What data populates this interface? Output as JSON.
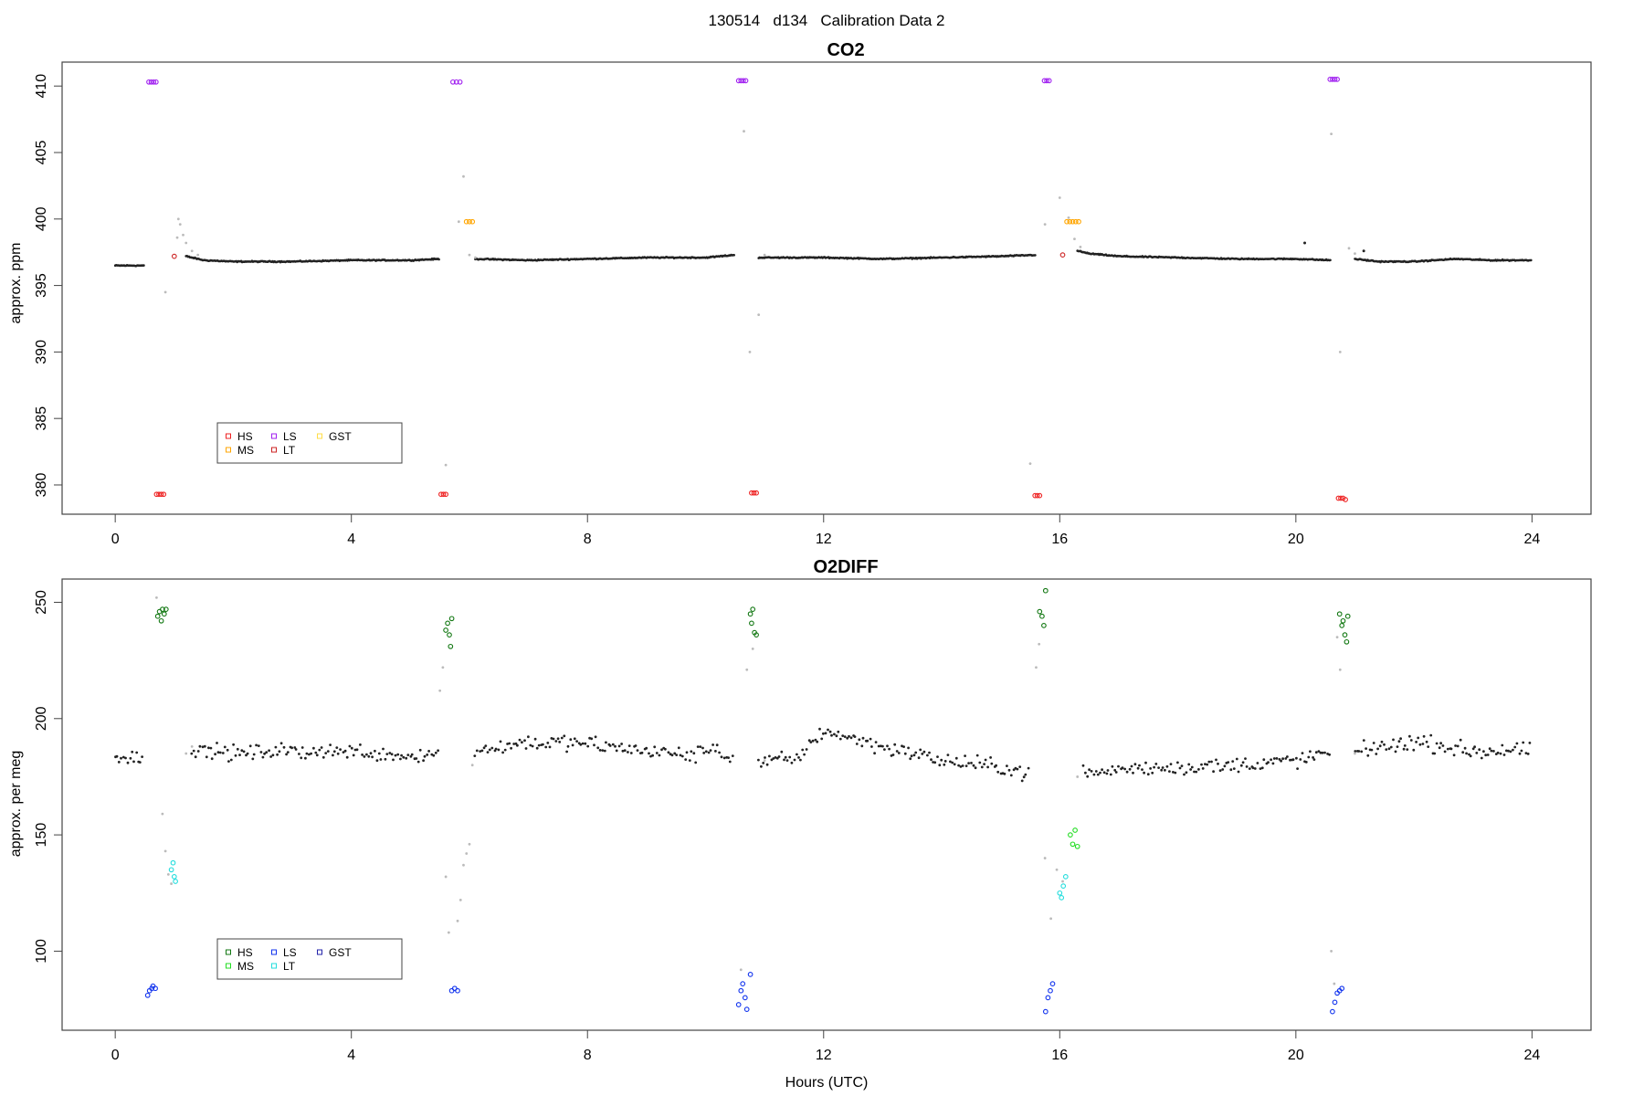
{
  "figure": {
    "main_title": "130514   d134   Calibration Data 2",
    "xlabel": "Hours (UTC)"
  },
  "colors": {
    "ambient": "#222222",
    "flush": "#bbbbbb",
    "HS_co2": "#ee2222",
    "MS_co2": "#ffa500",
    "LS_co2": "#a020f0",
    "LT_co2": "#cc2222",
    "GST_co2": "#ffdd44",
    "HS_o2": "#117711",
    "MS_o2": "#22dd22",
    "LS_o2": "#1133ee",
    "LT_o2": "#22dddd",
    "GST_o2": "#2222aa"
  },
  "chart_data": [
    {
      "type": "scatter",
      "title": "CO2",
      "ylabel": "approx. ppm",
      "xlabel": "",
      "xlim": [
        -0.9,
        25.0
      ],
      "ylim": [
        377.8,
        411.8
      ],
      "xticks": [
        0,
        4,
        8,
        12,
        16,
        20,
        24
      ],
      "yticks": [
        380,
        385,
        390,
        395,
        400,
        405,
        410
      ],
      "legend": {
        "placement": "bottom-left",
        "entries": [
          "HS",
          "MS",
          "LS",
          "LT",
          "GST"
        ]
      },
      "ambient_trace": [
        [
          0.0,
          396.5
        ],
        [
          0.5,
          396.5
        ],
        [
          null,
          null
        ],
        [
          1.2,
          397.2
        ],
        [
          1.5,
          396.9
        ],
        [
          2.0,
          396.8
        ],
        [
          3.0,
          396.8
        ],
        [
          4.0,
          396.9
        ],
        [
          5.0,
          396.9
        ],
        [
          5.5,
          397.0
        ],
        [
          null,
          null
        ],
        [
          6.1,
          397.0
        ],
        [
          7.0,
          396.9
        ],
        [
          8.0,
          397.0
        ],
        [
          9.0,
          397.1
        ],
        [
          10.0,
          397.1
        ],
        [
          10.5,
          397.3
        ],
        [
          null,
          null
        ],
        [
          10.9,
          397.1
        ],
        [
          12.0,
          397.1
        ],
        [
          13.0,
          397.0
        ],
        [
          14.0,
          397.1
        ],
        [
          15.0,
          397.2
        ],
        [
          15.6,
          397.3
        ],
        [
          null,
          null
        ],
        [
          16.3,
          397.6
        ],
        [
          16.5,
          397.4
        ],
        [
          17.0,
          397.2
        ],
        [
          18.0,
          397.1
        ],
        [
          19.0,
          397.0
        ],
        [
          20.0,
          397.0
        ],
        [
          20.6,
          396.9
        ],
        [
          null,
          null
        ],
        [
          21.0,
          397.0
        ],
        [
          21.4,
          396.8
        ],
        [
          22.0,
          396.8
        ],
        [
          22.7,
          397.0
        ],
        [
          23.3,
          396.9
        ],
        [
          24.0,
          396.9
        ]
      ],
      "flush_points": [
        [
          1.05,
          398.6
        ],
        [
          1.07,
          400.0
        ],
        [
          1.1,
          399.6
        ],
        [
          1.15,
          398.8
        ],
        [
          1.2,
          398.2
        ],
        [
          1.3,
          397.6
        ],
        [
          1.4,
          397.3
        ],
        [
          0.85,
          394.5
        ],
        [
          5.6,
          381.5
        ],
        [
          5.82,
          399.8
        ],
        [
          5.9,
          403.2
        ],
        [
          6.0,
          397.3
        ],
        [
          6.1,
          397.1
        ],
        [
          10.65,
          406.6
        ],
        [
          10.75,
          390.0
        ],
        [
          10.9,
          392.8
        ],
        [
          11.0,
          397.3
        ],
        [
          15.5,
          381.6
        ],
        [
          15.75,
          399.6
        ],
        [
          16.0,
          401.6
        ],
        [
          16.15,
          400.1
        ],
        [
          16.25,
          398.5
        ],
        [
          16.35,
          397.9
        ],
        [
          20.6,
          406.4
        ],
        [
          20.75,
          390.0
        ],
        [
          20.9,
          397.8
        ],
        [
          21.0,
          397.4
        ]
      ],
      "series": [
        {
          "name": "HS",
          "points": [
            [
              0.7,
              379.3
            ],
            [
              0.74,
              379.3
            ],
            [
              0.78,
              379.3
            ],
            [
              0.82,
              379.3
            ],
            [
              5.52,
              379.3
            ],
            [
              5.56,
              379.3
            ],
            [
              5.6,
              379.3
            ],
            [
              10.78,
              379.4
            ],
            [
              10.82,
              379.4
            ],
            [
              10.86,
              379.4
            ],
            [
              15.58,
              379.2
            ],
            [
              15.62,
              379.2
            ],
            [
              15.66,
              379.2
            ],
            [
              20.72,
              379.0
            ],
            [
              20.76,
              379.0
            ],
            [
              20.8,
              379.0
            ],
            [
              20.84,
              378.9
            ]
          ]
        },
        {
          "name": "MS",
          "points": [
            [
              5.95,
              399.8
            ],
            [
              6.0,
              399.8
            ],
            [
              6.05,
              399.8
            ],
            [
              16.12,
              399.8
            ],
            [
              16.17,
              399.8
            ],
            [
              16.22,
              399.8
            ],
            [
              16.27,
              399.8
            ],
            [
              16.32,
              399.8
            ]
          ]
        },
        {
          "name": "LS",
          "points": [
            [
              0.57,
              410.3
            ],
            [
              0.61,
              410.3
            ],
            [
              0.65,
              410.3
            ],
            [
              0.69,
              410.3
            ],
            [
              5.72,
              410.3
            ],
            [
              5.78,
              410.3
            ],
            [
              5.84,
              410.3
            ],
            [
              10.56,
              410.4
            ],
            [
              10.6,
              410.4
            ],
            [
              10.64,
              410.4
            ],
            [
              10.68,
              410.4
            ],
            [
              15.74,
              410.4
            ],
            [
              15.78,
              410.4
            ],
            [
              15.82,
              410.4
            ],
            [
              20.58,
              410.5
            ],
            [
              20.62,
              410.5
            ],
            [
              20.66,
              410.5
            ],
            [
              20.7,
              410.5
            ]
          ]
        },
        {
          "name": "LT",
          "points": [
            [
              1.0,
              397.2
            ],
            [
              16.05,
              397.3
            ]
          ]
        },
        {
          "name": "GST",
          "points": []
        }
      ],
      "outliers": [
        [
          20.15,
          398.2
        ],
        [
          21.15,
          397.6
        ]
      ]
    },
    {
      "type": "scatter",
      "title": "O2DIFF",
      "ylabel": "approx. per meg",
      "xlabel": "Hours (UTC)",
      "xlim": [
        -0.9,
        25.0
      ],
      "ylim": [
        66,
        260
      ],
      "xticks": [
        0,
        4,
        8,
        12,
        16,
        20,
        24
      ],
      "yticks": [
        100,
        150,
        200,
        250
      ],
      "legend": {
        "placement": "bottom-left",
        "entries": [
          "HS",
          "MS",
          "LS",
          "LT",
          "GST"
        ]
      },
      "ambient_profile": [
        [
          0.0,
          184
        ],
        [
          0.5,
          183
        ],
        [
          null,
          null
        ],
        [
          1.3,
          187
        ],
        [
          2.0,
          185
        ],
        [
          3.0,
          186
        ],
        [
          4.0,
          186
        ],
        [
          5.0,
          184
        ],
        [
          5.5,
          185
        ],
        [
          null,
          null
        ],
        [
          6.1,
          186
        ],
        [
          7.0,
          190
        ],
        [
          8.0,
          189
        ],
        [
          9.0,
          186
        ],
        [
          9.8,
          184
        ],
        [
          10.2,
          188
        ],
        [
          10.5,
          180
        ],
        [
          null,
          null
        ],
        [
          10.9,
          182
        ],
        [
          11.5,
          182
        ],
        [
          12.0,
          195
        ],
        [
          13.0,
          188
        ],
        [
          14.0,
          182
        ],
        [
          15.0,
          179
        ],
        [
          15.5,
          177
        ],
        [
          null,
          null
        ],
        [
          16.4,
          176
        ],
        [
          17.0,
          178
        ],
        [
          18.0,
          179
        ],
        [
          19.0,
          180
        ],
        [
          20.0,
          182
        ],
        [
          20.6,
          185
        ],
        [
          null,
          null
        ],
        [
          21.0,
          186
        ],
        [
          22.0,
          190
        ],
        [
          23.0,
          186
        ],
        [
          24.0,
          186
        ]
      ],
      "ambient_scatter": 5,
      "flush_points": [
        [
          0.7,
          252
        ],
        [
          0.8,
          159
        ],
        [
          0.85,
          143
        ],
        [
          0.9,
          133
        ],
        [
          0.95,
          129
        ],
        [
          1.2,
          185
        ],
        [
          1.3,
          188
        ],
        [
          5.5,
          212
        ],
        [
          5.55,
          222
        ],
        [
          5.6,
          132
        ],
        [
          5.65,
          108
        ],
        [
          5.8,
          113
        ],
        [
          5.85,
          122
        ],
        [
          5.9,
          137
        ],
        [
          5.95,
          142
        ],
        [
          6.0,
          146
        ],
        [
          6.05,
          180
        ],
        [
          10.6,
          92
        ],
        [
          10.7,
          221
        ],
        [
          10.8,
          230
        ],
        [
          11.0,
          182
        ],
        [
          15.6,
          222
        ],
        [
          15.65,
          232
        ],
        [
          15.75,
          140
        ],
        [
          15.85,
          114
        ],
        [
          15.95,
          135
        ],
        [
          16.05,
          130
        ],
        [
          16.3,
          175
        ],
        [
          20.6,
          100
        ],
        [
          20.65,
          86
        ],
        [
          20.7,
          235
        ],
        [
          20.75,
          221
        ],
        [
          21.0,
          185
        ]
      ],
      "series": [
        {
          "name": "HS",
          "points": [
            [
              0.72,
              244
            ],
            [
              0.75,
              246
            ],
            [
              0.78,
              242
            ],
            [
              0.8,
              247
            ],
            [
              0.83,
              245
            ],
            [
              0.86,
              247
            ],
            [
              5.6,
              238
            ],
            [
              5.63,
              241
            ],
            [
              5.66,
              236
            ],
            [
              5.68,
              231
            ],
            [
              5.7,
              243
            ],
            [
              10.76,
              245
            ],
            [
              10.78,
              241
            ],
            [
              10.8,
              247
            ],
            [
              10.83,
              237
            ],
            [
              10.86,
              236
            ],
            [
              15.66,
              246
            ],
            [
              15.7,
              244
            ],
            [
              15.73,
              240
            ],
            [
              15.76,
              255
            ],
            [
              20.74,
              245
            ],
            [
              20.78,
              240
            ],
            [
              20.8,
              242
            ],
            [
              20.83,
              236
            ],
            [
              20.86,
              233
            ],
            [
              20.88,
              244
            ]
          ]
        },
        {
          "name": "MS",
          "points": [
            [
              16.18,
              150
            ],
            [
              16.22,
              146
            ],
            [
              16.26,
              152
            ],
            [
              16.3,
              145
            ]
          ]
        },
        {
          "name": "LS",
          "points": [
            [
              0.55,
              81
            ],
            [
              0.58,
              83
            ],
            [
              0.62,
              84
            ],
            [
              0.64,
              85
            ],
            [
              0.68,
              84
            ],
            [
              5.7,
              83
            ],
            [
              5.75,
              84
            ],
            [
              5.8,
              83
            ],
            [
              10.56,
              77
            ],
            [
              10.6,
              83
            ],
            [
              10.63,
              86
            ],
            [
              10.67,
              80
            ],
            [
              10.7,
              75
            ],
            [
              10.76,
              90
            ],
            [
              15.76,
              74
            ],
            [
              15.8,
              80
            ],
            [
              15.84,
              83
            ],
            [
              15.88,
              86
            ],
            [
              20.62,
              74
            ],
            [
              20.66,
              78
            ],
            [
              20.7,
              82
            ],
            [
              20.74,
              83
            ],
            [
              20.78,
              84
            ]
          ]
        },
        {
          "name": "LT",
          "points": [
            [
              0.95,
              135
            ],
            [
              0.98,
              138
            ],
            [
              1.0,
              132
            ],
            [
              1.02,
              130
            ],
            [
              16.0,
              125
            ],
            [
              16.03,
              123
            ],
            [
              16.06,
              128
            ],
            [
              16.1,
              132
            ]
          ]
        },
        {
          "name": "GST",
          "points": []
        }
      ]
    }
  ]
}
